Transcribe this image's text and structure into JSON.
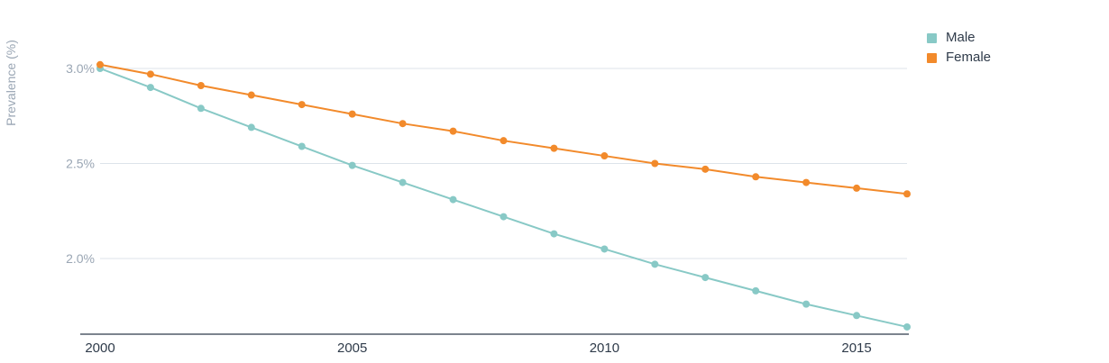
{
  "chart_data": {
    "type": "line",
    "title": "",
    "xlabel": "",
    "ylabel": "Prevalence (%)",
    "x": [
      2000,
      2001,
      2002,
      2003,
      2004,
      2005,
      2006,
      2007,
      2008,
      2009,
      2010,
      2011,
      2012,
      2013,
      2014,
      2015,
      2016
    ],
    "xlim": [
      2000,
      2016
    ],
    "ylim": [
      1.6,
      3.3
    ],
    "x_ticks": [
      {
        "value": 2000,
        "label": "2000"
      },
      {
        "value": 2005,
        "label": "2005"
      },
      {
        "value": 2010,
        "label": "2010"
      },
      {
        "value": 2015,
        "label": "2015"
      }
    ],
    "y_ticks": [
      {
        "value": 3.0,
        "label": "3.0%"
      },
      {
        "value": 2.5,
        "label": "2.5%"
      },
      {
        "value": 2.0,
        "label": "2.0%"
      }
    ],
    "grid": true,
    "legend_position": "top-right",
    "series": [
      {
        "name": "Male",
        "color": "#88c9c6",
        "values": [
          3.0,
          2.9,
          2.79,
          2.69,
          2.59,
          2.49,
          2.4,
          2.31,
          2.22,
          2.13,
          2.05,
          1.97,
          1.9,
          1.83,
          1.76,
          1.7,
          1.64
        ]
      },
      {
        "name": "Female",
        "color": "#f28a2b",
        "values": [
          3.02,
          2.97,
          2.91,
          2.86,
          2.81,
          2.76,
          2.71,
          2.67,
          2.62,
          2.58,
          2.54,
          2.5,
          2.47,
          2.43,
          2.4,
          2.37,
          2.34
        ]
      }
    ]
  }
}
